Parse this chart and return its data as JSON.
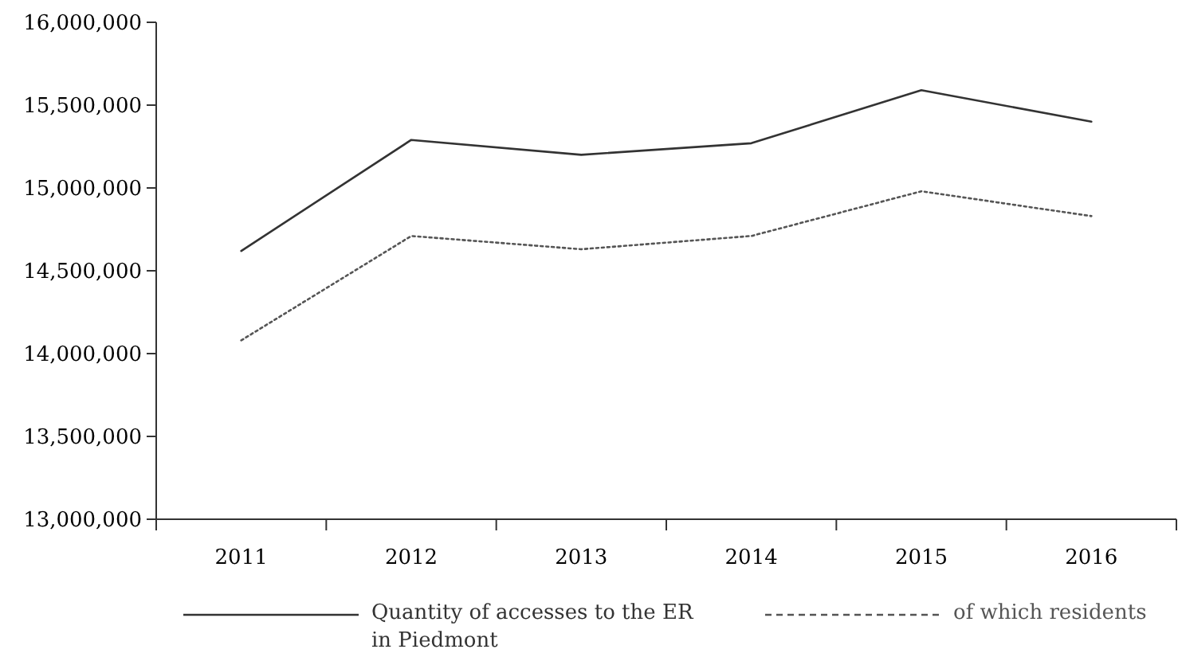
{
  "chart_data": {
    "type": "line",
    "categories": [
      "2011",
      "2012",
      "2013",
      "2014",
      "2015",
      "2016"
    ],
    "series": [
      {
        "name": "Quantity of accesses to the ER\nin Piedmont",
        "color": "#333333",
        "line_style": "solid",
        "values": [
          14620000,
          15290000,
          15200000,
          15270000,
          15590000,
          15400000
        ]
      },
      {
        "name": "of which residents",
        "color": "#555555",
        "line_style": "dotted",
        "values": [
          14080000,
          14710000,
          14630000,
          14710000,
          14980000,
          14830000
        ]
      }
    ],
    "ylim": [
      13000000,
      16000000
    ],
    "yticks": [
      {
        "value": 13000000,
        "label": "13,000,000"
      },
      {
        "value": 13500000,
        "label": "13,500,000"
      },
      {
        "value": 14000000,
        "label": "14,000,000"
      },
      {
        "value": 14500000,
        "label": "14,500,000"
      },
      {
        "value": 15000000,
        "label": "15,000,000"
      },
      {
        "value": 15500000,
        "label": "15,500,000"
      },
      {
        "value": 16000000,
        "label": "16,000,000"
      }
    ],
    "grid": false,
    "legend": "bottom",
    "marker": "none"
  }
}
